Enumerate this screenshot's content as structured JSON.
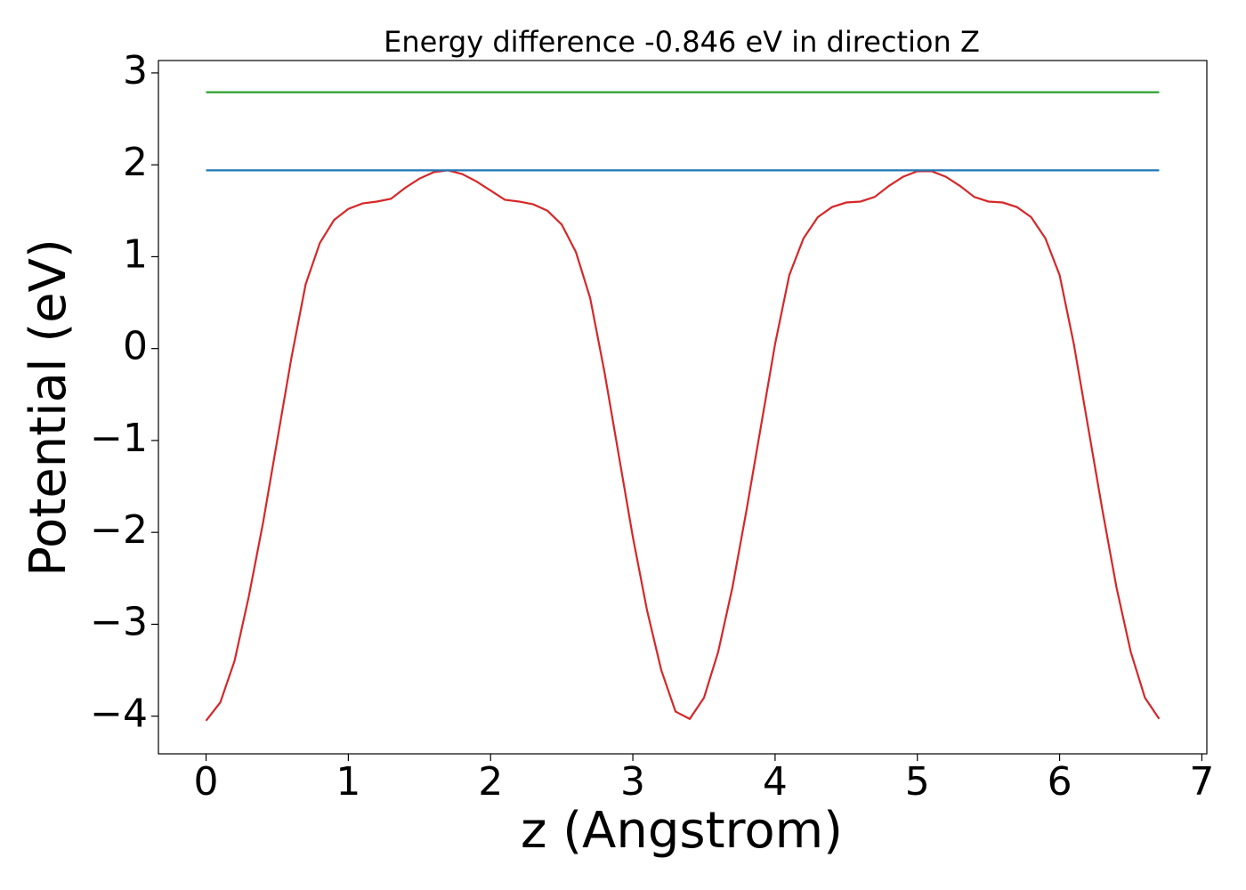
{
  "chart_data": {
    "type": "line",
    "title": "Energy difference -0.846 eV in direction Z",
    "xlabel": "z (Angstrom)",
    "ylabel": "Potential (eV)",
    "xlim": [
      -0.335,
      7.035
    ],
    "ylim": [
      -4.41,
      3.135
    ],
    "xticks": [
      0,
      1,
      2,
      3,
      4,
      5,
      6,
      7
    ],
    "yticks": [
      {
        "value": -4,
        "label": "−4"
      },
      {
        "value": -3,
        "label": "−3"
      },
      {
        "value": -2,
        "label": "−2"
      },
      {
        "value": -1,
        "label": "−1"
      },
      0,
      1,
      2,
      3
    ],
    "grid": false,
    "series": [
      {
        "color": "#d62728",
        "x": [
          0,
          0.1,
          0.2,
          0.3,
          0.4,
          0.5,
          0.6,
          0.7,
          0.8,
          0.9,
          1.0,
          1.1,
          1.2,
          1.3,
          1.4,
          1.5,
          1.6,
          1.7,
          1.8,
          1.9,
          2.0,
          2.1,
          2.2,
          2.3,
          2.4,
          2.5,
          2.6,
          2.7,
          2.8,
          2.9,
          3.0,
          3.1,
          3.2,
          3.3,
          3.4,
          3.5,
          3.6,
          3.7,
          3.8,
          3.9,
          4.0,
          4.1,
          4.2,
          4.3,
          4.4,
          4.5,
          4.6,
          4.7,
          4.8,
          4.9,
          5.0,
          5.1,
          5.2,
          5.3,
          5.4,
          5.5,
          5.6,
          5.7,
          5.8,
          5.9,
          6.0,
          6.1,
          6.2,
          6.3,
          6.4,
          6.5,
          6.6,
          6.7
        ],
        "values": [
          -4.05,
          -3.85,
          -3.4,
          -2.7,
          -1.9,
          -1.0,
          -0.1,
          0.7,
          1.15,
          1.4,
          1.52,
          1.58,
          1.6,
          1.63,
          1.75,
          1.85,
          1.92,
          1.94,
          1.9,
          1.82,
          1.72,
          1.62,
          1.6,
          1.57,
          1.5,
          1.35,
          1.05,
          0.55,
          -0.25,
          -1.15,
          -2.05,
          -2.85,
          -3.5,
          -3.95,
          -4.03,
          -3.8,
          -3.3,
          -2.6,
          -1.75,
          -0.85,
          0.05,
          0.8,
          1.2,
          1.43,
          1.54,
          1.59,
          1.6,
          1.65,
          1.77,
          1.87,
          1.93,
          1.93,
          1.87,
          1.77,
          1.65,
          1.6,
          1.59,
          1.54,
          1.43,
          1.2,
          0.8,
          0.05,
          -0.85,
          -1.75,
          -2.6,
          -3.3,
          -3.8,
          -4.03
        ]
      },
      {
        "color": "#1f77b4",
        "x": [
          0,
          6.7
        ],
        "values": [
          1.94,
          1.94
        ]
      },
      {
        "color": "#2ca02c",
        "x": [
          0,
          6.7
        ],
        "values": [
          2.79,
          2.79
        ]
      }
    ]
  }
}
